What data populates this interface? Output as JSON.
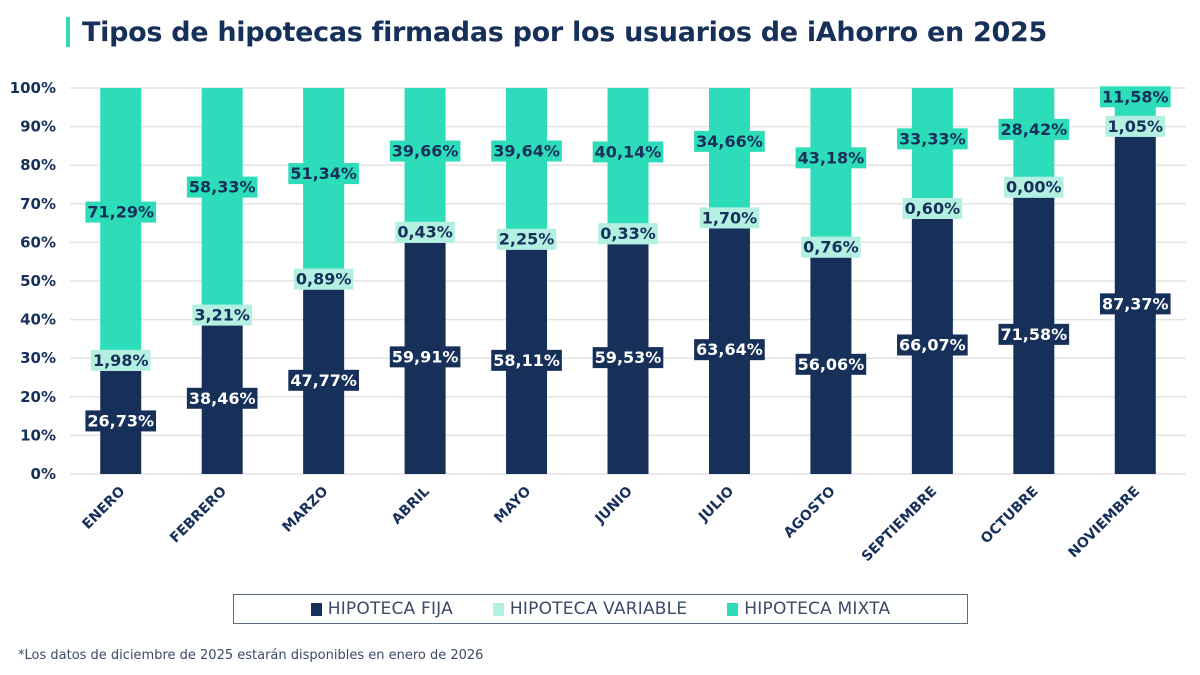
{
  "title": "Tipos de hipotecas firmadas por los usuarios de iAhorro en 2025",
  "footnote": "*Los datos de diciembre de 2025 estarán disponibles en enero de 2026",
  "colors": {
    "fija": "#16305a",
    "variable": "#b3f0e2",
    "mixta": "#2ddcb8",
    "text": "#16305a",
    "grid": "#e3e3e3",
    "accent": "#2ddcb8"
  },
  "legend": [
    {
      "label": "HIPOTECA FIJA",
      "series": "fija"
    },
    {
      "label": "HIPOTECA VARIABLE",
      "series": "variable"
    },
    {
      "label": "HIPOTECA MIXTA",
      "series": "mixta"
    }
  ],
  "chart_data": {
    "type": "bar",
    "stacked": true,
    "normalized": true,
    "title": "Tipos de hipotecas firmadas por los usuarios de iAhorro en 2025",
    "xlabel": "",
    "ylabel": "",
    "ylim": [
      0,
      100
    ],
    "yticks": [
      "0%",
      "10%",
      "20%",
      "30%",
      "40%",
      "50%",
      "60%",
      "70%",
      "80%",
      "90%",
      "100%"
    ],
    "grid": true,
    "legend_position": "bottom",
    "categories": [
      "ENERO",
      "FEBRERO",
      "MARZO",
      "ABRIL",
      "MAYO",
      "JUNIO",
      "JULIO",
      "AGOSTO",
      "SEPTIEMBRE",
      "OCTUBRE",
      "NOVIEMBRE"
    ],
    "series": [
      {
        "name": "HIPOTECA FIJA",
        "key": "fija",
        "values": [
          26.73,
          38.46,
          47.77,
          59.91,
          58.11,
          59.53,
          63.64,
          56.06,
          66.07,
          71.58,
          87.37
        ],
        "labels": [
          "26,73%",
          "38,46%",
          "47,77%",
          "59,91%",
          "58,11%",
          "59,53%",
          "63,64%",
          "56,06%",
          "66,07%",
          "71,58%",
          "87,37%"
        ]
      },
      {
        "name": "HIPOTECA VARIABLE",
        "key": "variable",
        "values": [
          1.98,
          3.21,
          0.89,
          0.43,
          2.25,
          0.33,
          1.7,
          0.76,
          0.6,
          0.0,
          1.05
        ],
        "labels": [
          "1,98%",
          "3,21%",
          "0,89%",
          "0,43%",
          "2,25%",
          "0,33%",
          "1,70%",
          "0,76%",
          "0,60%",
          "0,00%",
          "1,05%"
        ]
      },
      {
        "name": "HIPOTECA MIXTA",
        "key": "mixta",
        "values": [
          71.29,
          58.33,
          51.34,
          39.66,
          39.64,
          40.14,
          34.66,
          43.18,
          33.33,
          28.42,
          11.58
        ],
        "labels": [
          "71,29%",
          "58,33%",
          "51,34%",
          "39,66%",
          "39,64%",
          "40,14%",
          "34,66%",
          "43,18%",
          "33,33%",
          "28,42%",
          "11,58%"
        ]
      }
    ]
  }
}
